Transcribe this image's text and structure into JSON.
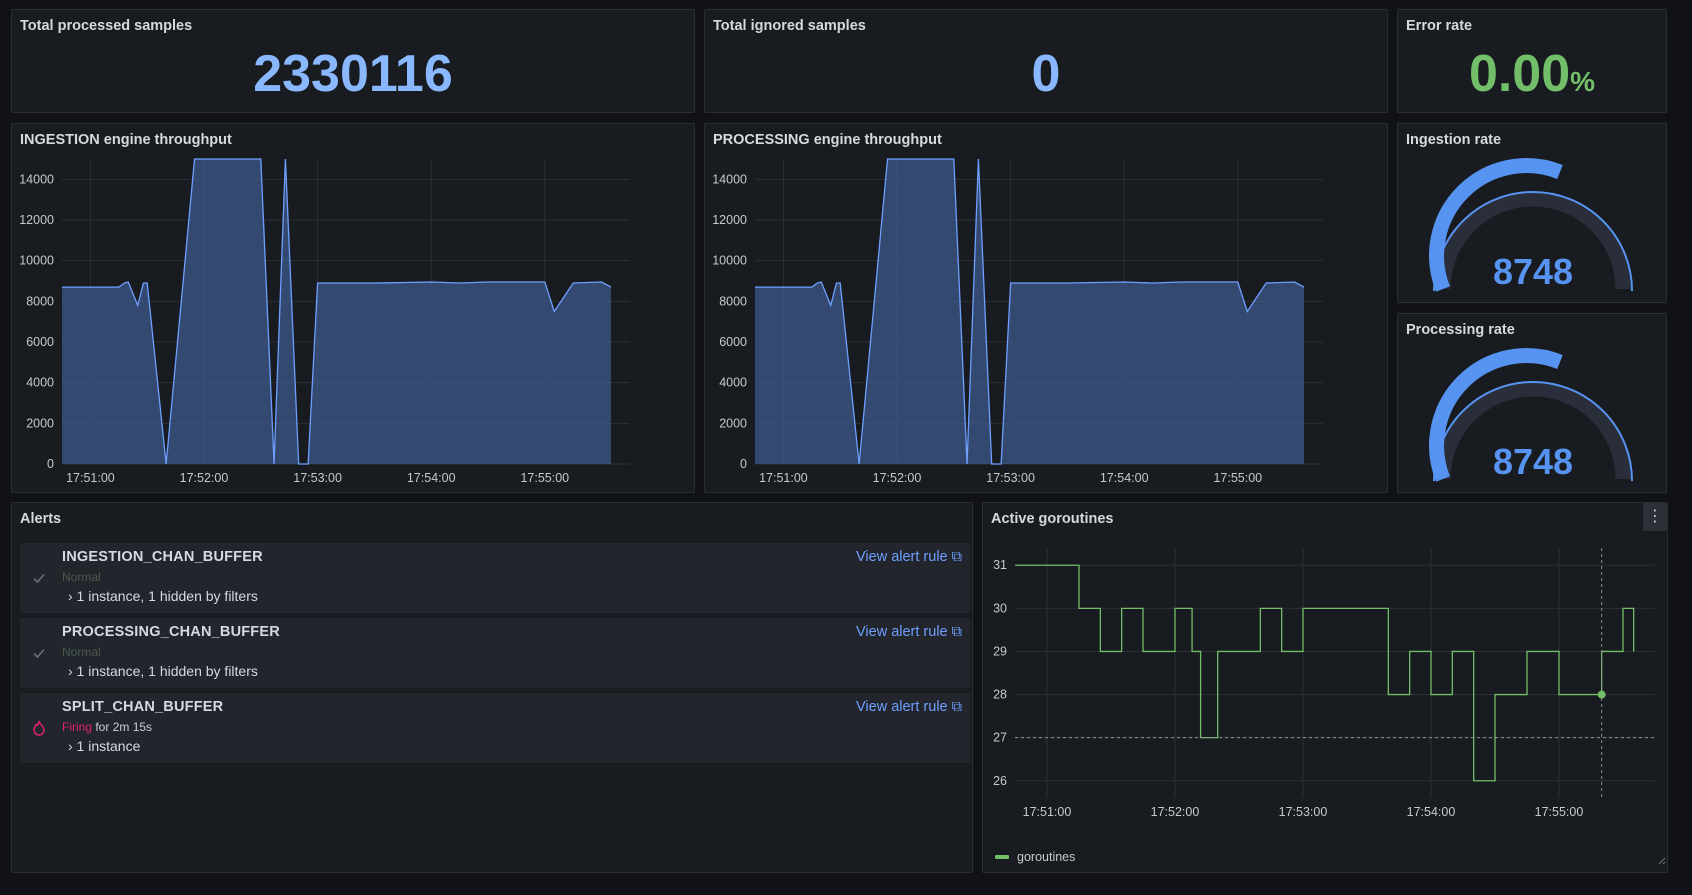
{
  "stats": {
    "processed": {
      "title": "Total processed samples",
      "value": "2330116"
    },
    "ignored": {
      "title": "Total ignored samples",
      "value": "0"
    },
    "error_rate": {
      "title": "Error rate",
      "value": "0.00",
      "unit": "%"
    }
  },
  "ingestion_chart": {
    "title": "INGESTION engine throughput"
  },
  "processing_chart": {
    "title": "PROCESSING engine throughput"
  },
  "gauges": {
    "ingestion": {
      "title": "Ingestion rate",
      "value": "8748"
    },
    "processing": {
      "title": "Processing rate",
      "value": "8748"
    }
  },
  "alerts_panel": {
    "title": "Alerts",
    "items": [
      {
        "name": "INGESTION_CHAN_BUFFER",
        "state": "Normal",
        "state_extra": "",
        "instances": "› 1 instance, 1 hidden by filters",
        "link": "View alert rule",
        "icon": "check-icon"
      },
      {
        "name": "PROCESSING_CHAN_BUFFER",
        "state": "Normal",
        "state_extra": "",
        "instances": "› 1 instance, 1 hidden by filters",
        "link": "View alert rule",
        "icon": "check-icon"
      },
      {
        "name": "SPLIT_CHAN_BUFFER",
        "state": "Firing",
        "state_extra": " for 2m 15s",
        "instances": "› 1 instance",
        "link": "View alert rule",
        "icon": "fire-icon"
      }
    ]
  },
  "goroutines_panel": {
    "title": "Active goroutines",
    "menu_icon": "more-vertical-icon",
    "legend": "goroutines"
  },
  "colors": {
    "blue": "#6e9fff",
    "green": "#73bf69",
    "red": "#e0226e",
    "fill": "#3d5a8c"
  },
  "chart_data": [
    {
      "type": "area",
      "title": "INGESTION engine throughput",
      "x_ticks": [
        "17:51:00",
        "17:52:00",
        "17:53:00",
        "17:54:00",
        "17:55:00"
      ],
      "y_ticks": [
        0,
        2000,
        4000,
        6000,
        8000,
        10000,
        12000,
        14000
      ],
      "ylim": [
        0,
        15000
      ],
      "grid": true,
      "series": [
        {
          "x": [
            "17:50:45",
            "17:51:00",
            "17:51:15",
            "17:51:18",
            "17:51:20",
            "17:51:25",
            "17:51:28",
            "17:51:30",
            "17:51:40",
            "17:51:55",
            "17:52:00",
            "17:52:30",
            "17:52:37",
            "17:52:43",
            "17:52:50",
            "17:52:55",
            "17:53:00",
            "17:53:30",
            "17:54:00",
            "17:54:15",
            "17:54:30",
            "17:55:00",
            "17:55:05",
            "17:55:15",
            "17:55:30",
            "17:55:35"
          ],
          "values": [
            8700,
            8700,
            8700,
            8900,
            8950,
            7800,
            8900,
            8900,
            0,
            15000,
            15000,
            15000,
            0,
            15000,
            0,
            0,
            8900,
            8900,
            8950,
            8900,
            8950,
            8950,
            7500,
            8900,
            8950,
            8700
          ]
        }
      ]
    },
    {
      "type": "area",
      "title": "PROCESSING engine throughput",
      "x_ticks": [
        "17:51:00",
        "17:52:00",
        "17:53:00",
        "17:54:00",
        "17:55:00"
      ],
      "y_ticks": [
        0,
        2000,
        4000,
        6000,
        8000,
        10000,
        12000,
        14000
      ],
      "ylim": [
        0,
        15000
      ],
      "grid": true,
      "series": [
        {
          "x": [
            "17:50:45",
            "17:51:00",
            "17:51:15",
            "17:51:18",
            "17:51:20",
            "17:51:25",
            "17:51:28",
            "17:51:30",
            "17:51:40",
            "17:51:55",
            "17:52:00",
            "17:52:30",
            "17:52:37",
            "17:52:43",
            "17:52:50",
            "17:52:55",
            "17:53:00",
            "17:53:30",
            "17:54:00",
            "17:54:15",
            "17:54:30",
            "17:55:00",
            "17:55:05",
            "17:55:15",
            "17:55:30",
            "17:55:35"
          ],
          "values": [
            8700,
            8700,
            8700,
            8900,
            8950,
            7800,
            8900,
            8900,
            0,
            15000,
            15000,
            15000,
            0,
            15000,
            0,
            0,
            8900,
            8900,
            8950,
            8900,
            8950,
            8950,
            7500,
            8900,
            8950,
            8700
          ]
        }
      ]
    },
    {
      "type": "line",
      "title": "Active goroutines",
      "x_ticks": [
        "17:51:00",
        "17:52:00",
        "17:53:00",
        "17:54:00",
        "17:55:00"
      ],
      "y_ticks": [
        26,
        27,
        28,
        29,
        30,
        31
      ],
      "ylim": [
        25.6,
        31.4
      ],
      "grid": true,
      "legend": "bottom-left",
      "series": [
        {
          "name": "goroutines",
          "x": [
            "17:50:45",
            "17:51:10",
            "17:51:15",
            "17:51:25",
            "17:51:35",
            "17:51:45",
            "17:52:00",
            "17:52:08",
            "17:52:12",
            "17:52:20",
            "17:52:40",
            "17:52:50",
            "17:53:00",
            "17:53:15",
            "17:53:25",
            "17:53:40",
            "17:53:50",
            "17:54:00",
            "17:54:10",
            "17:54:20",
            "17:54:30",
            "17:54:45",
            "17:55:00",
            "17:55:20",
            "17:55:30",
            "17:55:35"
          ],
          "values": [
            31,
            31,
            30,
            29,
            30,
            29,
            30,
            29,
            27,
            29,
            30,
            29,
            30,
            30,
            30,
            28,
            29,
            28,
            29,
            26,
            28,
            29,
            28,
            29,
            30,
            29
          ]
        }
      ]
    }
  ]
}
